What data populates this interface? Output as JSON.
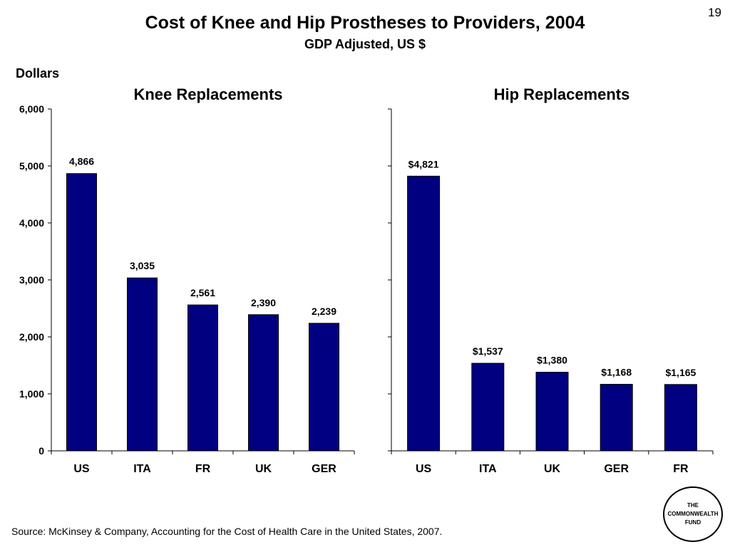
{
  "page_number": "19",
  "title": "Cost of Knee and Hip Prostheses to Providers, 2004",
  "subtitle": "GDP Adjusted, US $",
  "y_unit": "Dollars",
  "source": "Source: McKinsey & Company, Accounting for the Cost of Health Care in the United States, 2007.",
  "logo": [
    "THE",
    "COMMONWEALTH",
    "FUND"
  ],
  "colors": {
    "bar": "#000080",
    "axis": "#000000"
  },
  "chart_data": [
    {
      "type": "bar",
      "title": "Knee Replacements",
      "categories": [
        "US",
        "ITA",
        "FR",
        "UK",
        "GER"
      ],
      "values": [
        4866,
        3035,
        2561,
        2390,
        2239
      ],
      "data_labels": [
        "4,866",
        "3,035",
        "2,561",
        "2,390",
        "2,239"
      ],
      "ylim": [
        0,
        6000
      ],
      "yticks": [
        0,
        1000,
        2000,
        3000,
        4000,
        5000,
        6000
      ],
      "ytick_labels": [
        "0",
        "1,000",
        "2,000",
        "3,000",
        "4,000",
        "5,000",
        "6,000"
      ],
      "grid": false,
      "legend": "none"
    },
    {
      "type": "bar",
      "title": "Hip Replacements",
      "categories": [
        "US",
        "ITA",
        "UK",
        "GER",
        "FR"
      ],
      "values": [
        4821,
        1537,
        1380,
        1168,
        1165
      ],
      "data_labels": [
        "$4,821",
        "$1,537",
        "$1,380",
        "$1,168",
        "$1,165"
      ],
      "ylim": [
        0,
        6000
      ],
      "grid": false,
      "legend": "none"
    }
  ]
}
